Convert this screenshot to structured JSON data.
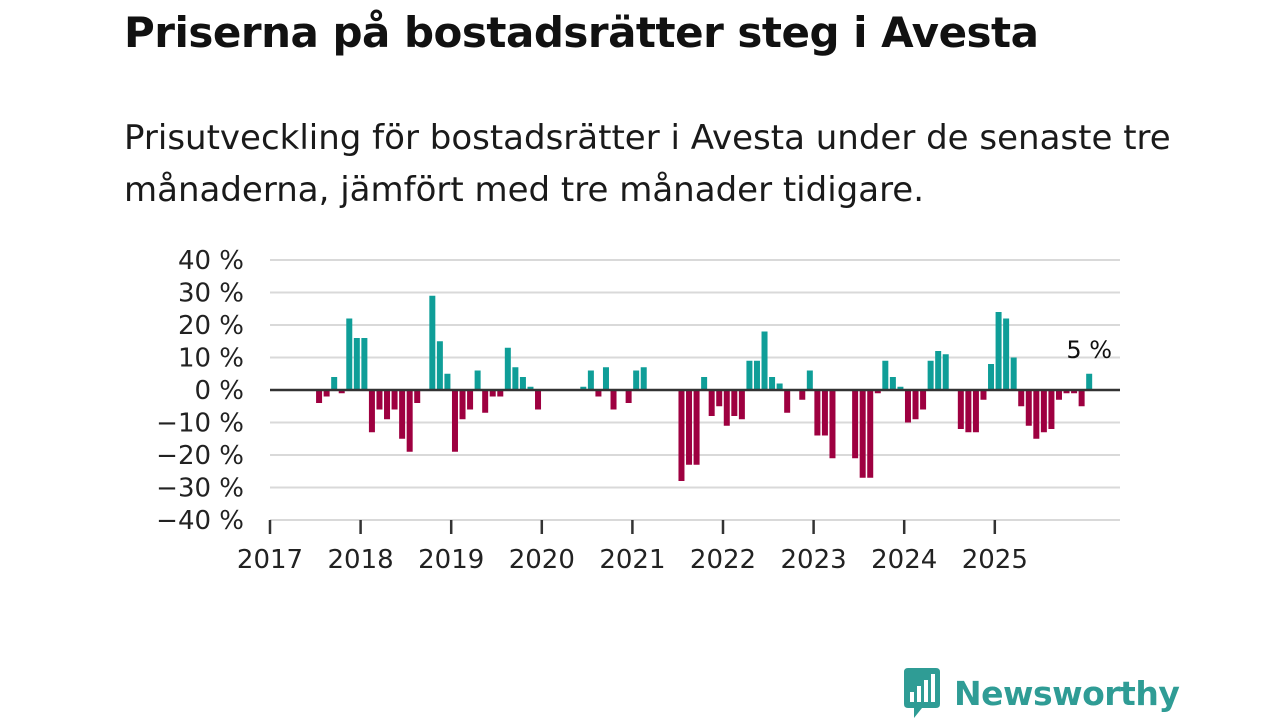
{
  "title": "Priserna på bostadsrätter steg i Avesta",
  "subtitle": "Prisutveckling för bostadsrätter i Avesta under de senaste tre månaderna, jämfört med tre månader tidigare.",
  "logo": {
    "text": "Newsworthy",
    "color": "#2f9c95",
    "icon": "bar-chart-speech-icon"
  },
  "colors": {
    "positive": "#0f9e98",
    "negative": "#9e0040",
    "grid": "#d9d9d9",
    "axis": "#333333"
  },
  "chart_data": {
    "type": "bar",
    "title": "Priserna på bostadsrätter steg i Avesta",
    "ylabel": "",
    "xlabel": "",
    "ylim": [
      -40,
      40
    ],
    "yticks": [
      40,
      30,
      20,
      10,
      0,
      -10,
      -20,
      -30,
      -40
    ],
    "ytick_labels": [
      "40 %",
      "30 %",
      "20 %",
      "10 %",
      "0 %",
      "−10 %",
      "−20 %",
      "−30 %",
      "−40 %"
    ],
    "x_year_ticks": [
      "2017",
      "2018",
      "2019",
      "2020",
      "2021",
      "2022",
      "2023",
      "2024",
      "2025"
    ],
    "annotation": {
      "text": "5 %",
      "target": "last"
    },
    "start": "2017-01",
    "values": [
      null,
      null,
      null,
      null,
      null,
      null,
      -4,
      -2,
      4,
      -1,
      22,
      16,
      16,
      -13,
      -6,
      -9,
      -6,
      -15,
      -19,
      -4,
      null,
      29,
      15,
      5,
      -19,
      -9,
      -6,
      6,
      -7,
      -2,
      -2,
      13,
      7,
      4,
      1,
      -6,
      null,
      null,
      null,
      null,
      null,
      1,
      6,
      -2,
      7,
      -6,
      null,
      -4,
      6,
      7,
      null,
      null,
      null,
      null,
      -28,
      -23,
      -23,
      4,
      -8,
      -5,
      -11,
      -8,
      -9,
      9,
      9,
      18,
      4,
      2,
      -7,
      null,
      -3,
      6,
      -14,
      -14,
      -21,
      null,
      null,
      -21,
      -27,
      -27,
      -1,
      9,
      4,
      1,
      -10,
      -9,
      -6,
      9,
      12,
      11,
      null,
      -12,
      -13,
      -13,
      -3,
      8,
      24,
      22,
      10,
      -5,
      -11,
      -15,
      -13,
      -12,
      -3,
      -1,
      -1,
      -5,
      5
    ]
  }
}
